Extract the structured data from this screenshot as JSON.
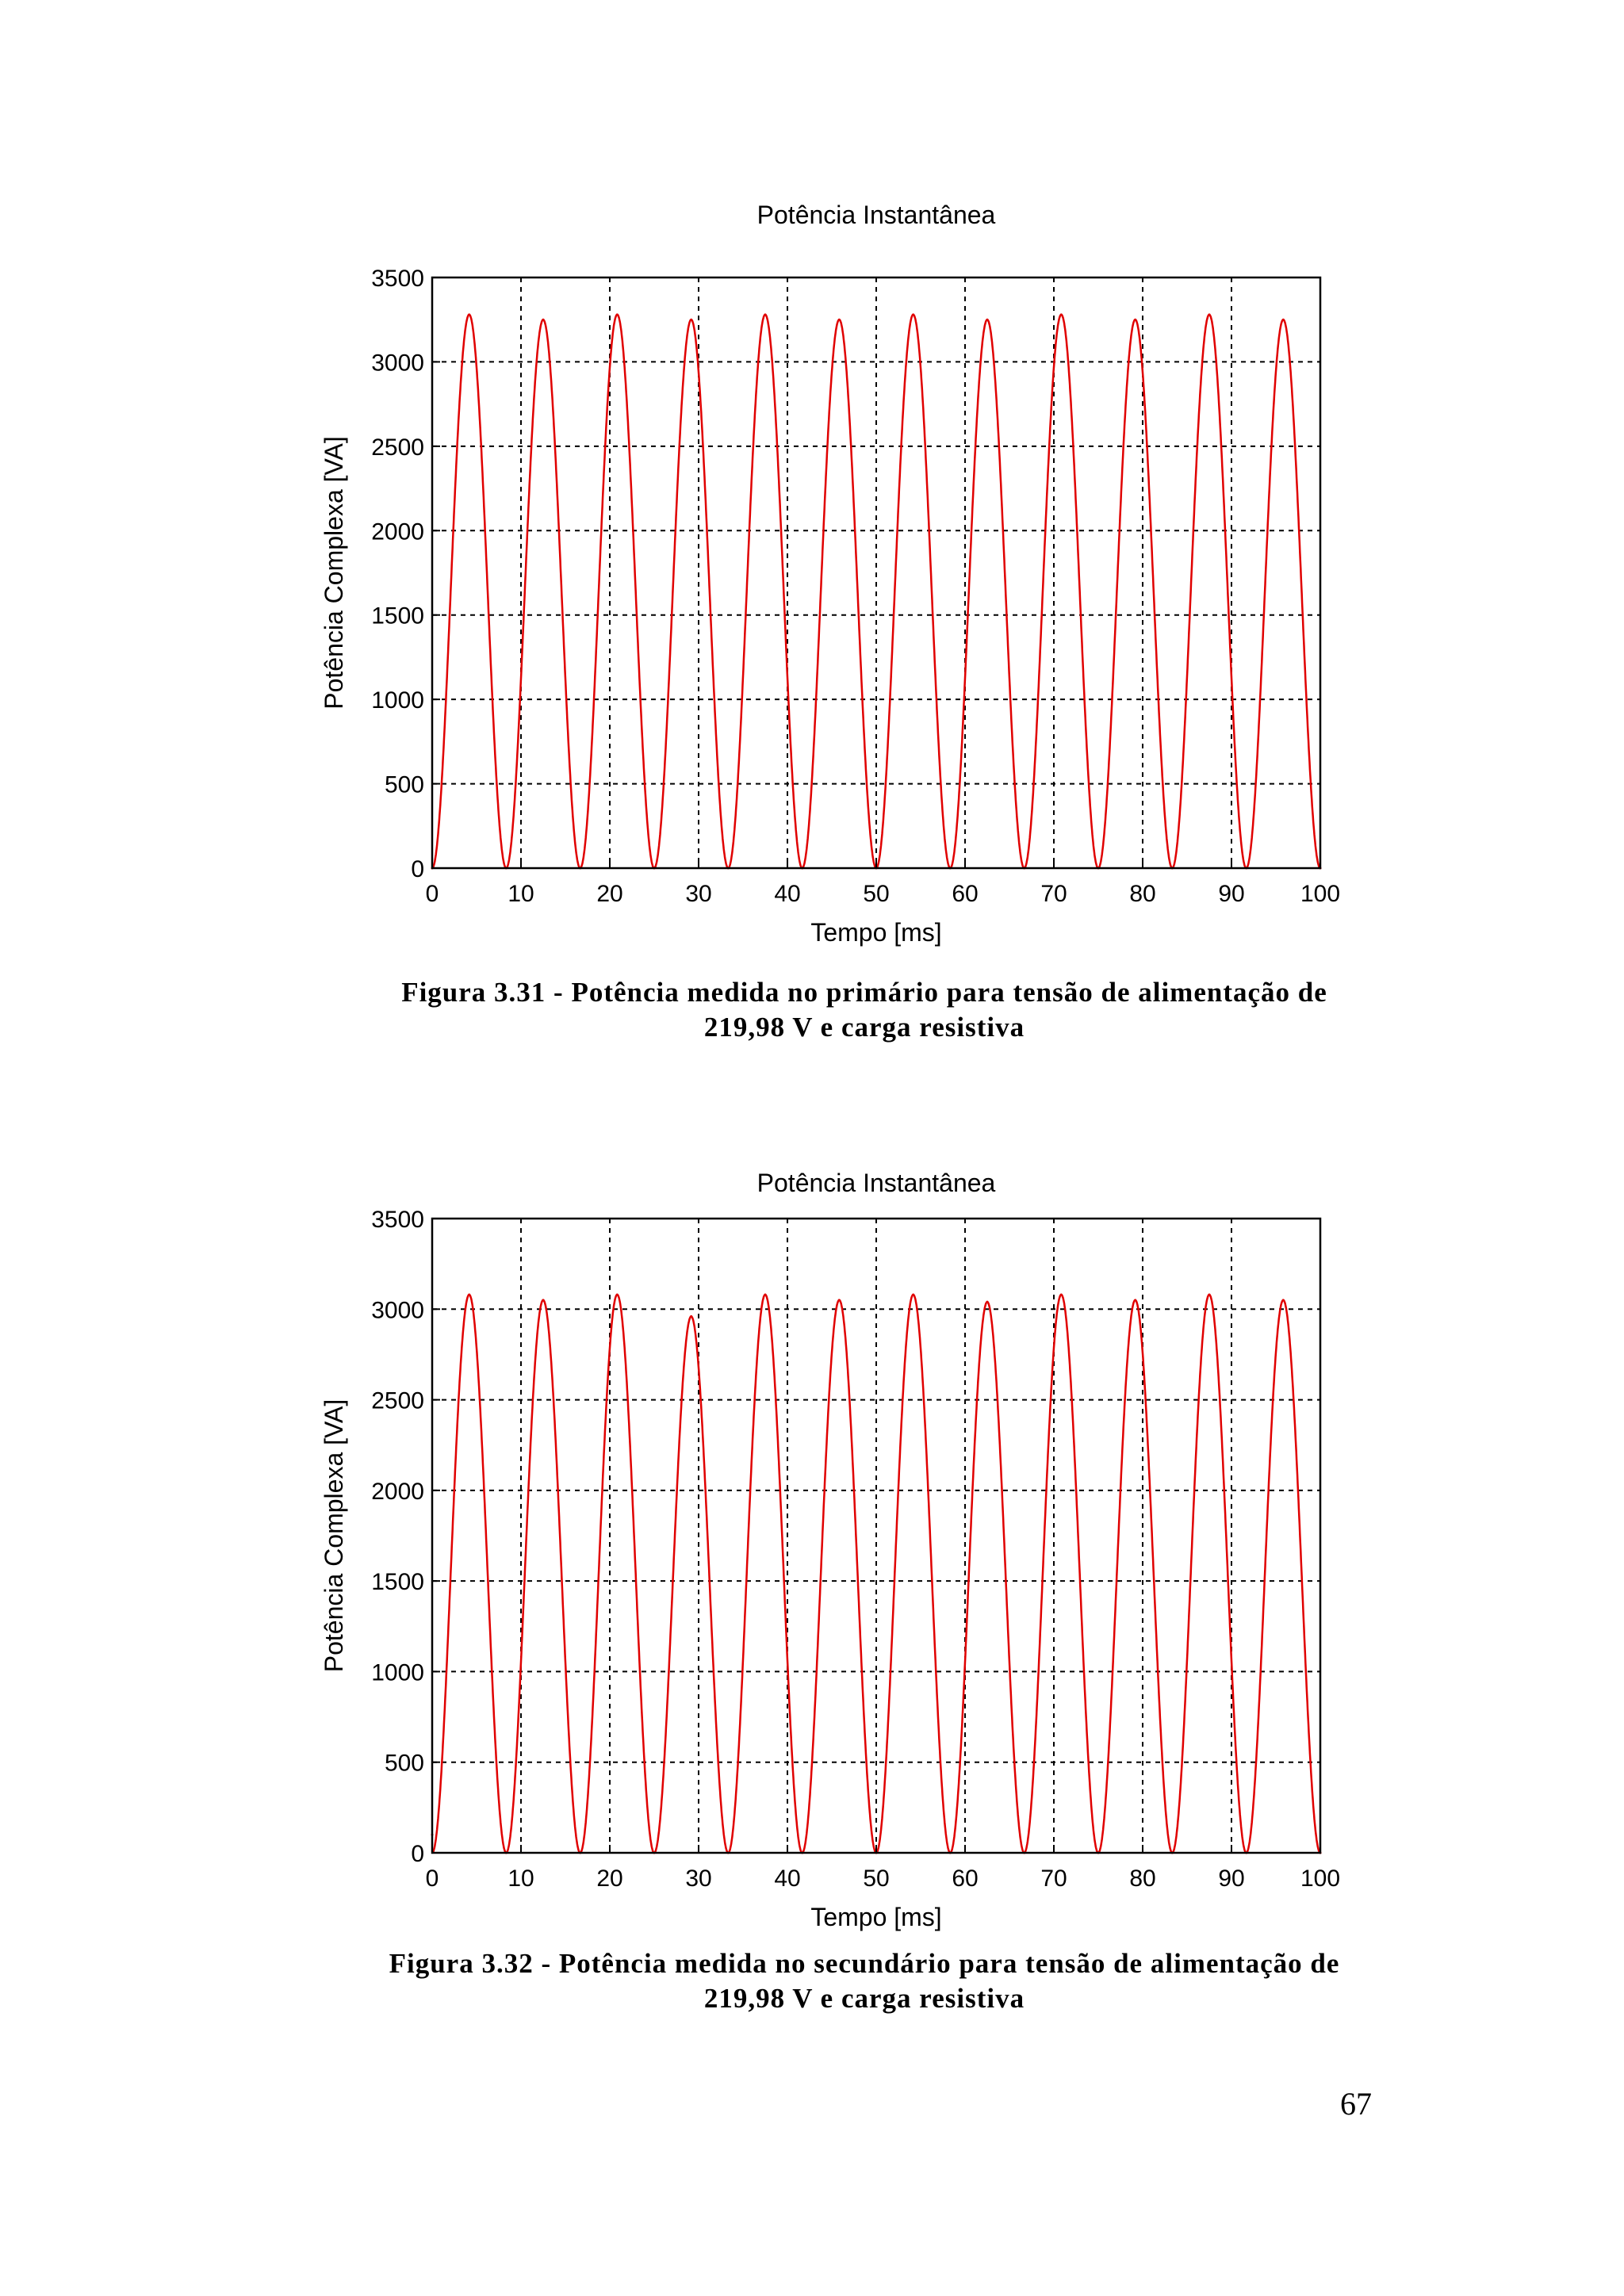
{
  "chart_data": [
    {
      "type": "line",
      "title": "Potência Instantânea",
      "xlabel": "Tempo [ms]",
      "ylabel": "Potência Complexa [VA]",
      "xlim": [
        0,
        100
      ],
      "ylim": [
        0,
        3500
      ],
      "xticks": [
        0,
        10,
        20,
        30,
        40,
        50,
        60,
        70,
        80,
        90,
        100
      ],
      "yticks": [
        0,
        500,
        1000,
        1500,
        2000,
        2500,
        3000,
        3500
      ],
      "grid": true,
      "series": [
        {
          "name": "Potência",
          "color": "#e00000",
          "period_ms": 8.333,
          "x": [
            0,
            4.17,
            8.33,
            12.5,
            16.67,
            20.83,
            25,
            29.17,
            33.33,
            37.5,
            41.67,
            45.83,
            50,
            54.17,
            58.33,
            62.5,
            66.67,
            70.83,
            75,
            79.17,
            83.33,
            87.5,
            91.67,
            95.83,
            100
          ],
          "y": [
            0,
            3280,
            0,
            3250,
            0,
            3280,
            0,
            3250,
            0,
            3280,
            0,
            3250,
            0,
            3280,
            0,
            3250,
            0,
            3280,
            0,
            3250,
            0,
            3280,
            0,
            3250,
            0
          ]
        }
      ]
    },
    {
      "type": "line",
      "title": "Potência Instantânea",
      "xlabel": "Tempo [ms]",
      "ylabel": "Potência Complexa [VA]",
      "xlim": [
        0,
        100
      ],
      "ylim": [
        0,
        3500
      ],
      "xticks": [
        0,
        10,
        20,
        30,
        40,
        50,
        60,
        70,
        80,
        90,
        100
      ],
      "yticks": [
        0,
        500,
        1000,
        1500,
        2000,
        2500,
        3000,
        3500
      ],
      "grid": true,
      "series": [
        {
          "name": "Potência",
          "color": "#e00000",
          "period_ms": 8.333,
          "x": [
            0,
            4.17,
            8.33,
            12.5,
            16.67,
            20.83,
            25,
            29.17,
            33.33,
            37.5,
            41.67,
            45.83,
            50,
            54.17,
            58.33,
            62.5,
            66.67,
            70.83,
            75,
            79.17,
            83.33,
            87.5,
            91.67,
            95.83,
            100
          ],
          "y": [
            100,
            3080,
            0,
            3050,
            0,
            3080,
            0,
            2960,
            0,
            3080,
            0,
            3050,
            0,
            3080,
            0,
            3040,
            0,
            3080,
            0,
            3050,
            0,
            3080,
            0,
            3050,
            0
          ]
        }
      ]
    }
  ],
  "captions": [
    {
      "line1": "Figura 3.31 - Potência medida no primário para tensão de alimentação de",
      "line2": "219,98 V e carga resistiva"
    },
    {
      "line1": "Figura 3.32 - Potência medida no secundário para tensão de alimentação de",
      "line2": "219,98 V e carga resistiva"
    }
  ],
  "page_number": "67"
}
